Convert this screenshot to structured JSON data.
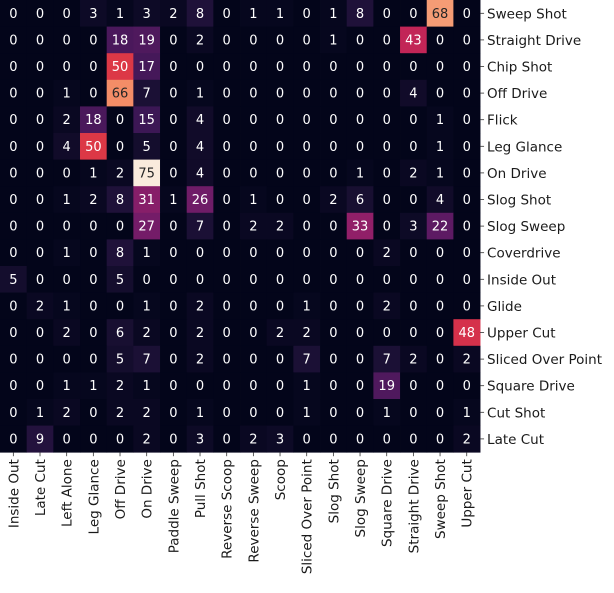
{
  "chart_data": {
    "type": "heatmap",
    "title": "",
    "xlabel": "",
    "ylabel": "",
    "x_labels": [
      "Inside Out",
      "Late Cut",
      "Left Alone",
      "Leg Glance",
      "Off Drive",
      "On Drive",
      "Paddle Sweep",
      "Pull Shot",
      "Reverse Scoop",
      "Reverse Sweep",
      "Scoop",
      "Sliced Over Point",
      "Slog Shot",
      "Slog Sweep",
      "Square Drive",
      "Straight Drive",
      "Sweep Shot",
      "Upper Cut"
    ],
    "y_labels": [
      "Sweep Shot",
      "Straight Drive",
      "Chip Shot",
      "Off Drive",
      "Flick",
      "Leg Glance",
      "On Drive",
      "Slog Shot",
      "Slog Sweep",
      "Coverdrive",
      "Inside Out",
      "Glide",
      "Upper Cut",
      "Sliced Over Point",
      "Square Drive",
      "Cut Shot",
      "Late Cut"
    ],
    "values": [
      [
        0,
        0,
        0,
        3,
        1,
        3,
        2,
        8,
        0,
        1,
        1,
        0,
        1,
        8,
        0,
        0,
        68,
        0
      ],
      [
        0,
        0,
        0,
        0,
        18,
        19,
        0,
        2,
        0,
        0,
        0,
        0,
        1,
        0,
        0,
        43,
        0,
        0
      ],
      [
        0,
        0,
        0,
        0,
        50,
        17,
        0,
        0,
        0,
        0,
        0,
        0,
        0,
        0,
        0,
        0,
        0,
        0
      ],
      [
        0,
        0,
        1,
        0,
        66,
        7,
        0,
        1,
        0,
        0,
        0,
        0,
        0,
        0,
        0,
        4,
        0,
        0
      ],
      [
        0,
        0,
        2,
        18,
        0,
        15,
        0,
        4,
        0,
        0,
        0,
        0,
        0,
        0,
        0,
        0,
        1,
        0
      ],
      [
        0,
        0,
        4,
        50,
        0,
        5,
        0,
        4,
        0,
        0,
        0,
        0,
        0,
        0,
        0,
        0,
        1,
        0
      ],
      [
        0,
        0,
        0,
        1,
        2,
        75,
        0,
        4,
        0,
        0,
        0,
        0,
        0,
        1,
        0,
        2,
        1,
        0
      ],
      [
        0,
        0,
        1,
        2,
        8,
        31,
        1,
        26,
        0,
        1,
        0,
        0,
        2,
        6,
        0,
        0,
        4,
        0
      ],
      [
        0,
        0,
        0,
        0,
        0,
        27,
        0,
        7,
        0,
        2,
        2,
        0,
        0,
        33,
        0,
        3,
        22,
        0
      ],
      [
        0,
        0,
        1,
        0,
        8,
        1,
        0,
        0,
        0,
        0,
        0,
        0,
        0,
        0,
        2,
        0,
        0,
        0
      ],
      [
        5,
        0,
        0,
        0,
        5,
        0,
        0,
        0,
        0,
        0,
        0,
        0,
        0,
        0,
        0,
        0,
        0,
        0
      ],
      [
        0,
        2,
        1,
        0,
        0,
        1,
        0,
        2,
        0,
        0,
        0,
        1,
        0,
        0,
        2,
        0,
        0,
        0
      ],
      [
        0,
        0,
        2,
        0,
        6,
        2,
        0,
        2,
        0,
        0,
        2,
        2,
        0,
        0,
        0,
        0,
        0,
        48
      ],
      [
        0,
        0,
        0,
        0,
        5,
        7,
        0,
        2,
        0,
        0,
        0,
        7,
        0,
        0,
        7,
        2,
        0,
        2
      ],
      [
        0,
        0,
        1,
        1,
        2,
        1,
        0,
        0,
        0,
        0,
        0,
        1,
        0,
        0,
        19,
        0,
        0,
        0
      ],
      [
        0,
        1,
        2,
        0,
        2,
        2,
        0,
        1,
        0,
        0,
        0,
        1,
        0,
        0,
        1,
        0,
        0,
        1
      ],
      [
        0,
        9,
        0,
        0,
        0,
        2,
        0,
        3,
        0,
        2,
        3,
        0,
        0,
        0,
        0,
        0,
        0,
        2
      ]
    ],
    "colormap": "rocket",
    "vmin": 0,
    "vmax": 75,
    "colorbar": false,
    "annotations": true
  }
}
